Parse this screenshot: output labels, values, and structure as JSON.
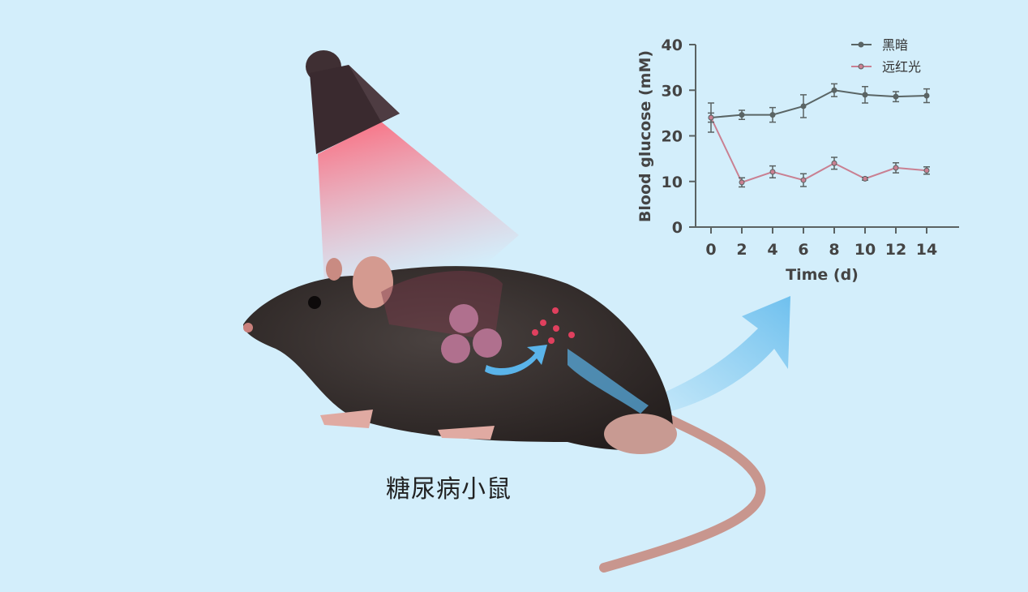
{
  "caption": "糖尿病小鼠",
  "colors": {
    "background": "#d3eefb",
    "dark_series": "#5a6565",
    "far_red_series": "#c98092",
    "beam": "#ff6b7a",
    "arrow": "#6fc0ee"
  },
  "icons": [
    "lamp-icon",
    "rat-illustration",
    "arrow-icon"
  ],
  "chart_data": {
    "type": "line",
    "title": "",
    "xlabel": "Time (d)",
    "ylabel": "Blood glucose (mM)",
    "x": [
      0,
      2,
      4,
      6,
      8,
      10,
      12,
      14
    ],
    "xticks": [
      "0",
      "2",
      "4",
      "6",
      "8",
      "10",
      "12",
      "14"
    ],
    "yticks": [
      "0",
      "10",
      "20",
      "30",
      "40"
    ],
    "ylim": [
      0,
      40
    ],
    "xlim": [
      -1,
      16
    ],
    "grid": false,
    "legend": "top-right",
    "series": [
      {
        "name": "黑暗",
        "color": "#5a6565",
        "values": [
          24,
          24.6,
          24.6,
          26.5,
          30,
          29,
          28.6,
          28.8
        ],
        "errors": [
          3.2,
          1.0,
          1.6,
          2.5,
          1.4,
          1.8,
          1.1,
          1.5
        ]
      },
      {
        "name": "远红光",
        "color": "#c98092",
        "values": [
          24,
          9.8,
          12.1,
          10.3,
          14,
          10.6,
          13,
          12.4
        ],
        "errors": [
          1.0,
          1.0,
          1.3,
          1.4,
          1.3,
          0.3,
          1.1,
          0.8
        ]
      }
    ]
  }
}
